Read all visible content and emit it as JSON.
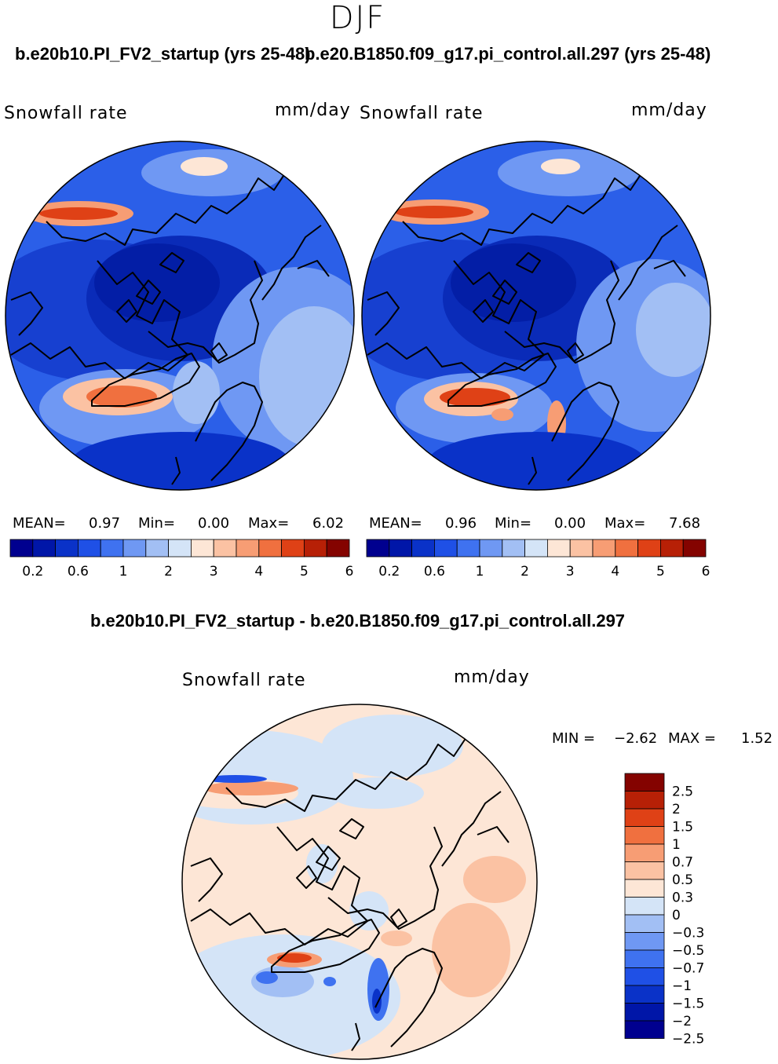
{
  "season": "DJF",
  "titles": {
    "left": "b.e20b10.PI_FV2_startup (yrs 25-48)",
    "right": "b.e20.B1850.f09_g17.pi_control.all.297 (yrs 25-48)",
    "diff": "b.e20b10.PI_FV2_startup - b.e20.B1850.f09_g17.pi_control.all.297"
  },
  "chart_data": [
    {
      "type": "heatmap",
      "projection": "north polar stereographic",
      "variable": "Snowfall rate",
      "units": "mm/day",
      "stats": {
        "mean_label": "MEAN=",
        "mean": "0.97",
        "min_label": "Min=",
        "min": "0.00",
        "max_label": "Max=",
        "max": "6.02"
      },
      "colorbar": {
        "ticks": [
          "0.2",
          "0.6",
          "1",
          "2",
          "3",
          "4",
          "5",
          "6"
        ],
        "colors": [
          "#00008f",
          "#0016a8",
          "#0a32c8",
          "#1f50e6",
          "#3f72f0",
          "#6f98f3",
          "#a2bff4",
          "#d4e4f7",
          "#fde6d6",
          "#fbc2a3",
          "#f79d74",
          "#f0703f",
          "#df4116",
          "#b72006",
          "#840300"
        ]
      }
    },
    {
      "type": "heatmap",
      "projection": "north polar stereographic",
      "variable": "Snowfall rate",
      "units": "mm/day",
      "stats": {
        "mean_label": "MEAN=",
        "mean": "0.96",
        "min_label": "Min=",
        "min": "0.00",
        "max_label": "Max=",
        "max": "7.68"
      },
      "colorbar": {
        "ticks": [
          "0.2",
          "0.6",
          "1",
          "2",
          "3",
          "4",
          "5",
          "6"
        ],
        "colors": [
          "#00008f",
          "#0016a8",
          "#0a32c8",
          "#1f50e6",
          "#3f72f0",
          "#6f98f3",
          "#a2bff4",
          "#d4e4f7",
          "#fde6d6",
          "#fbc2a3",
          "#f79d74",
          "#f0703f",
          "#df4116",
          "#b72006",
          "#840300"
        ]
      }
    },
    {
      "type": "heatmap",
      "projection": "north polar stereographic",
      "variable": "Snowfall rate",
      "units": "mm/day",
      "stats": {
        "min_label": "MIN =",
        "min": "−2.62",
        "max_label": "MAX =",
        "max": "1.52"
      },
      "colorbar": {
        "orientation": "vertical",
        "ticks": [
          "2.5",
          "2",
          "1.5",
          "1",
          "0.7",
          "0.5",
          "0.3",
          "0",
          "−0.3",
          "−0.5",
          "−0.7",
          "−1",
          "−1.5",
          "−2",
          "−2.5"
        ],
        "colors": [
          "#840300",
          "#b72006",
          "#df4116",
          "#f0703f",
          "#f79d74",
          "#fbc2a3",
          "#fde6d6",
          "#d4e4f7",
          "#a2bff4",
          "#6f98f3",
          "#3f72f0",
          "#1f50e6",
          "#0a32c8",
          "#0016a8",
          "#00008f"
        ]
      }
    }
  ]
}
